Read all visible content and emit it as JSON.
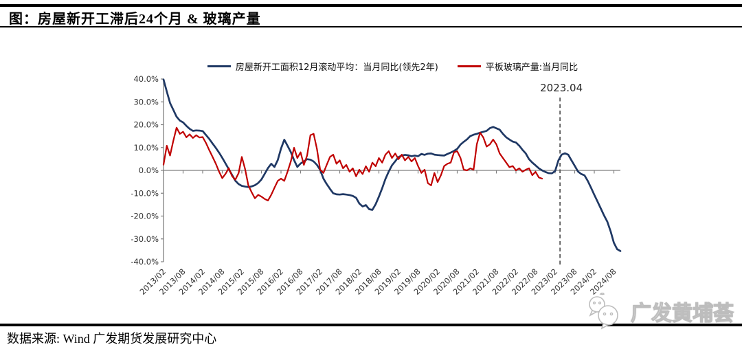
{
  "header": {
    "title": "图：房屋新开工滞后24个月 & 玻璃产量"
  },
  "footer": {
    "source": "数据来源: Wind 广发期货发展研究中心",
    "watermark": "广发黄埔荟",
    "watermark_icon": "wechat-icon"
  },
  "annotation": {
    "label": "2023.04",
    "month_index": 121.5
  },
  "chart_data": {
    "type": "line",
    "title": "房屋新开工滞后24个月 & 玻璃产量",
    "unit": "%",
    "grid": "off",
    "legend_position": "top-center",
    "y_axis": {
      "min": -40,
      "max": 40,
      "step": 10,
      "ticks": [
        {
          "value": 40,
          "label": "40.0%"
        },
        {
          "value": 30,
          "label": "30.0%"
        },
        {
          "value": 20,
          "label": "20.0%"
        },
        {
          "value": 10,
          "label": "10.0%"
        },
        {
          "value": 0,
          "label": "0.0%"
        },
        {
          "value": -10,
          "label": "-10.0%"
        },
        {
          "value": -20,
          "label": "-20.0%"
        },
        {
          "value": -30,
          "label": "-30.0%"
        },
        {
          "value": -40,
          "label": "-40.0%"
        }
      ]
    },
    "x_axis": {
      "start": "2013/02",
      "frequency": "monthly",
      "total_months": 140,
      "tick_interval_months": 6,
      "tick_labels": [
        "2013/02",
        "2013/08",
        "2014/02",
        "2014/08",
        "2015/02",
        "2015/08",
        "2016/02",
        "2016/08",
        "2017/02",
        "2017/08",
        "2018/02",
        "2018/08",
        "2019/02",
        "2019/08",
        "2020/02",
        "2020/08",
        "2021/02",
        "2021/08",
        "2022/02",
        "2022/08",
        "2023/02",
        "2023/08",
        "2024/02",
        "2024/08"
      ]
    },
    "series": [
      {
        "id": "housing-starts",
        "name": "房屋新开工面积12月滚动平均：当月同比(领先2年)",
        "color": "#1f3864",
        "start": "2013/02",
        "values": [
          39.8,
          34.5,
          29.5,
          26.5,
          23.5,
          21.8,
          21.0,
          19.5,
          18.2,
          17.3,
          17.5,
          17.4,
          17.2,
          15.5,
          13.8,
          11.8,
          9.9,
          7.8,
          5.5,
          3.0,
          0.5,
          -2.0,
          -4.5,
          -6.0,
          -6.8,
          -7.1,
          -7.3,
          -7.0,
          -6.5,
          -5.5,
          -4.0,
          -1.5,
          1.0,
          2.9,
          1.5,
          4.5,
          9.5,
          13.4,
          10.8,
          8.0,
          4.5,
          1.5,
          3.0,
          3.9,
          4.9,
          4.7,
          3.9,
          2.4,
          0.2,
          -3.6,
          -6.0,
          -8.1,
          -10.0,
          -10.5,
          -10.6,
          -10.4,
          -10.6,
          -10.8,
          -11.2,
          -12.0,
          -14.5,
          -15.8,
          -15.2,
          -17.0,
          -17.3,
          -14.8,
          -11.5,
          -7.8,
          -3.8,
          -0.5,
          2.2,
          4.0,
          5.8,
          6.5,
          6.8,
          6.6,
          6.2,
          6.5,
          6.2,
          7.2,
          6.8,
          7.3,
          7.4,
          6.9,
          6.7,
          6.6,
          6.5,
          7.2,
          7.8,
          8.5,
          9.4,
          11.3,
          12.5,
          13.6,
          15.0,
          15.6,
          16.0,
          16.5,
          16.9,
          17.3,
          18.5,
          19.0,
          18.4,
          17.8,
          16.0,
          14.5,
          13.5,
          12.6,
          12.2,
          10.8,
          9.0,
          7.4,
          4.9,
          3.4,
          2.2,
          0.9,
          0.0,
          -0.7,
          -1.2,
          -1.3,
          -0.3,
          4.4,
          6.9,
          7.5,
          6.9,
          4.4,
          2.0,
          -0.5,
          -1.6,
          -2.2,
          -4.6,
          -7.6,
          -10.7,
          -13.7,
          -16.7,
          -19.8,
          -22.5,
          -26.7,
          -31.7,
          -34.5,
          -35.3
        ]
      },
      {
        "id": "flat-glass",
        "name": "平板玻璃产量:当月同比",
        "color": "#c00000",
        "start": "2013/02",
        "values": [
          2.5,
          10.8,
          6.5,
          13.0,
          18.7,
          16.0,
          16.9,
          14.5,
          15.8,
          14.2,
          15.4,
          14.4,
          14.6,
          12.0,
          8.9,
          6.0,
          3.0,
          -0.5,
          -3.4,
          -1.5,
          1.0,
          -2.5,
          -4.1,
          -1.2,
          5.9,
          0.5,
          -6.6,
          -9.6,
          -12.2,
          -10.7,
          -11.5,
          -12.5,
          -13.2,
          -10.7,
          -7.6,
          -4.6,
          -3.6,
          -4.6,
          -0.6,
          3.9,
          9.9,
          5.4,
          7.9,
          2.4,
          6.5,
          15.4,
          16.0,
          9.4,
          0.3,
          -1.1,
          2.4,
          5.9,
          6.9,
          2.9,
          4.4,
          0.9,
          2.4,
          -0.6,
          0.9,
          -2.6,
          0.3,
          -1.6,
          1.8,
          -0.6,
          3.4,
          1.8,
          5.4,
          3.4,
          6.9,
          8.4,
          5.4,
          7.4,
          4.9,
          6.9,
          4.4,
          5.9,
          3.9,
          5.4,
          1.9,
          -1.1,
          0.3,
          -5.6,
          -6.6,
          -1.1,
          -5.1,
          -2.1,
          1.9,
          2.9,
          3.4,
          7.9,
          8.4,
          5.4,
          0.3,
          0.0,
          0.9,
          0.3,
          11.4,
          16.5,
          14.4,
          10.4,
          11.4,
          13.5,
          11.4,
          7.4,
          5.4,
          3.4,
          1.4,
          1.9,
          0.0,
          0.9,
          -0.6,
          0.3,
          0.9,
          -2.1,
          -0.6,
          -3.1,
          -3.6
        ]
      }
    ]
  }
}
